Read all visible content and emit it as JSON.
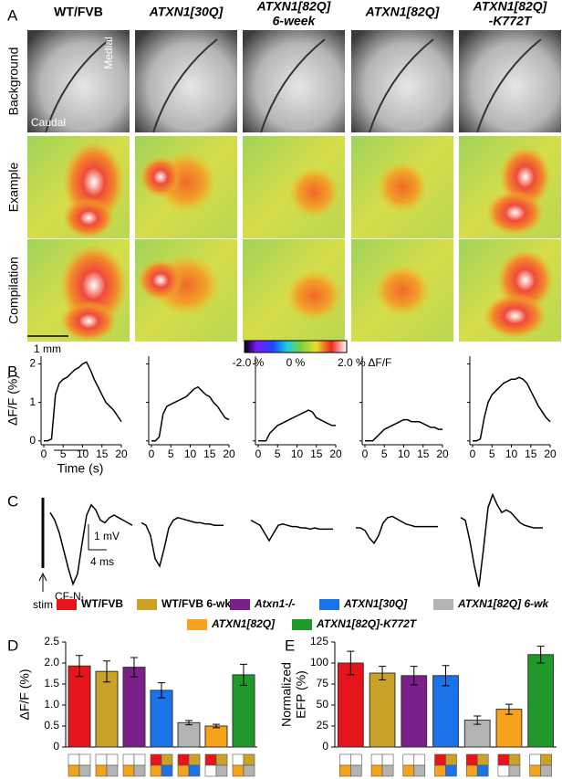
{
  "panel_letters": [
    "A",
    "B",
    "C",
    "D",
    "E"
  ],
  "panel_a": {
    "columns": [
      [
        "WT/FVB"
      ],
      [
        "ATXN1[30Q]"
      ],
      [
        "ATXN1[82Q]",
        "6-week"
      ],
      [
        "ATXN1[82Q]"
      ],
      [
        "ATXN1[82Q]",
        "-K772T"
      ]
    ],
    "rows": [
      "Background",
      "Example",
      "Compilation"
    ],
    "medial": "Medial",
    "caudal": "Caudal",
    "scale_bar": "1 mm",
    "colorbar_labels": [
      "-2.0 %",
      "0 %",
      "2.0 % ΔF/F"
    ]
  },
  "legend": {
    "entries": [
      {
        "name": "WT/FVB",
        "color": "#e8141b"
      },
      {
        "name": "WT/FVB 6-wk",
        "color": "#c9a227"
      },
      {
        "name": "Atxn1-/-",
        "color": "#7b1f8a"
      },
      {
        "name": "ATXN1[30Q]",
        "color": "#1a73e8"
      },
      {
        "name": "ATXN1[82Q] 6-wk",
        "color": "#b3b3b3"
      },
      {
        "name": "ATXN1[82Q]",
        "color": "#f7a21b"
      },
      {
        "name": "ATXN1[82Q]-K772T",
        "color": "#1f9a2a"
      }
    ]
  },
  "chart_data": [
    {
      "type": "line",
      "ylabel": "ΔF/F (%)",
      "xlabel": "Time (s)",
      "x": [
        0,
        1,
        2,
        3,
        4,
        5,
        6,
        7,
        8,
        9,
        10,
        11,
        12,
        13,
        14,
        15,
        16,
        17,
        18,
        19,
        20
      ],
      "xlim": [
        0,
        20
      ],
      "ylim": [
        -0.1,
        2.2
      ],
      "xticks": [
        0,
        5,
        10,
        15,
        20
      ],
      "yticks": [
        0,
        1,
        2
      ],
      "color": "#000000",
      "series": [
        {
          "values": [
            0,
            0,
            0.05,
            1.2,
            1.5,
            1.6,
            1.65,
            1.75,
            1.85,
            1.9,
            2.0,
            2.05,
            1.85,
            1.6,
            1.4,
            1.2,
            1.0,
            0.9,
            0.8,
            0.65,
            0.5
          ]
        },
        {
          "values": [
            0,
            0,
            0.1,
            0.7,
            0.9,
            0.95,
            1.0,
            1.05,
            1.1,
            1.15,
            1.25,
            1.35,
            1.4,
            1.3,
            1.2,
            1.15,
            1.0,
            0.9,
            0.75,
            0.6,
            0.55
          ]
        },
        {
          "values": [
            0,
            0,
            0,
            0.2,
            0.3,
            0.4,
            0.45,
            0.5,
            0.55,
            0.6,
            0.65,
            0.7,
            0.75,
            0.8,
            0.75,
            0.6,
            0.55,
            0.5,
            0.45,
            0.4,
            0.4
          ]
        },
        {
          "values": [
            0,
            0,
            0,
            0.1,
            0.2,
            0.3,
            0.35,
            0.4,
            0.45,
            0.5,
            0.55,
            0.55,
            0.5,
            0.5,
            0.5,
            0.45,
            0.4,
            0.35,
            0.35,
            0.3,
            0.3
          ]
        },
        {
          "values": [
            0,
            0,
            0.05,
            0.6,
            1.0,
            1.2,
            1.3,
            1.4,
            1.5,
            1.55,
            1.6,
            1.6,
            1.65,
            1.6,
            1.5,
            1.3,
            1.1,
            0.9,
            0.75,
            0.6,
            0.5
          ]
        }
      ]
    },
    {
      "type": "trace",
      "stim_label": "stim",
      "peak_label": "CF-N₁",
      "scale_bars": [
        {
          "value": 1,
          "label": "1 mV"
        },
        {
          "value": 4,
          "label": "4 ms"
        }
      ],
      "x": [
        0,
        1,
        2,
        3,
        4,
        5,
        6,
        7,
        8,
        9,
        10,
        11,
        12,
        13,
        14,
        15,
        16,
        17,
        18
      ],
      "series": [
        {
          "values": [
            0.6,
            0.3,
            -0.2,
            -0.9,
            -1.6,
            -2.2,
            -1.8,
            -0.6,
            0.5,
            0.9,
            0.7,
            0.3,
            0.2,
            0.4,
            0.5,
            0.4,
            0.3,
            0.2,
            0.1
          ]
        },
        {
          "values": [
            0.2,
            0.1,
            -0.3,
            -1.2,
            -1.5,
            -0.8,
            0,
            0.3,
            0.4,
            0.35,
            0.3,
            0.25,
            0.2,
            0.2,
            0.15,
            0.15,
            0.1,
            0.1,
            0.1
          ]
        },
        {
          "values": [
            0.3,
            0.2,
            0.1,
            -0.2,
            -0.5,
            -0.2,
            0.1,
            0.15,
            0.1,
            0.05,
            0.05,
            0,
            0,
            -0.05,
            0,
            -0.05,
            -0.05,
            -0.05,
            -0.05
          ]
        },
        {
          "values": [
            0,
            0,
            -0.1,
            -0.4,
            -0.6,
            -0.3,
            0.2,
            0.4,
            0.45,
            0.35,
            0.25,
            0.15,
            0.1,
            0.05,
            0.05,
            0.05,
            0.05,
            0.05,
            0.05
          ]
        },
        {
          "values": [
            0.4,
            0.3,
            -0.5,
            -1.5,
            -2.3,
            -0.8,
            0.8,
            1.3,
            0.9,
            0.6,
            0.7,
            0.6,
            0.4,
            0.2,
            0.1,
            0.05,
            0,
            0,
            0
          ]
        }
      ]
    },
    {
      "type": "bar",
      "ylabel": [
        "ΔF/F (%)"
      ],
      "ylim": [
        0,
        2.5
      ],
      "yticks": [
        0,
        0.5,
        {
          "value": 1,
          "label": "1.0"
        },
        1.5,
        {
          "value": 2,
          "label": "2.0"
        },
        2.5
      ],
      "values": [
        1.93,
        1.8,
        1.9,
        1.35,
        0.58,
        0.5,
        1.72
      ],
      "errors": [
        0.25,
        0.25,
        0.23,
        0.18,
        0.05,
        0.04,
        0.25
      ]
    },
    {
      "type": "bar",
      "ylabel": [
        "Normalized",
        "EFP (%)"
      ],
      "ylim": [
        0,
        125
      ],
      "yticks": [
        0,
        25,
        50,
        75,
        100,
        125
      ],
      "values": [
        100,
        88,
        85,
        85,
        32,
        45,
        110
      ],
      "errors": [
        14,
        8,
        11,
        12,
        5,
        6,
        10
      ]
    }
  ]
}
